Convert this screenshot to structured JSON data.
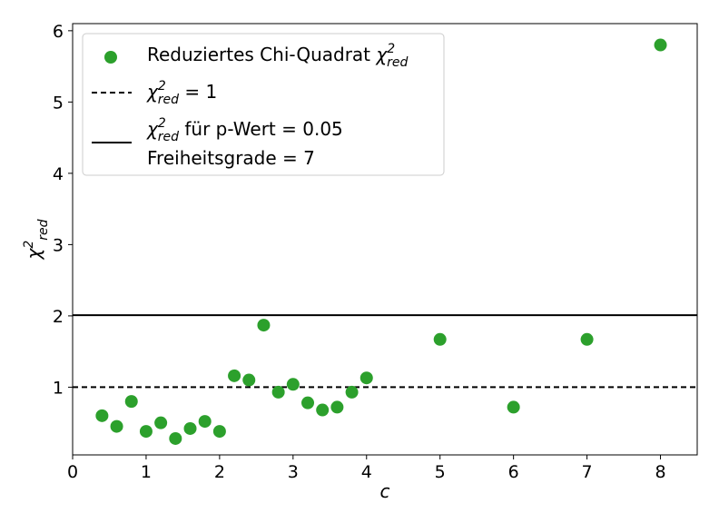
{
  "chart_data": {
    "type": "scatter",
    "xlabel": "c",
    "ylabel": {
      "symbol": "χ",
      "sup": "2",
      "sub": "red"
    },
    "xlim": [
      0,
      8.5
    ],
    "ylim": [
      0.05,
      6.1
    ],
    "xticks": [
      "0",
      "1",
      "2",
      "3",
      "4",
      "5",
      "6",
      "7",
      "8"
    ],
    "yticks": [
      "1",
      "2",
      "3",
      "4",
      "5",
      "6"
    ],
    "grid": false,
    "legend_position": "top-left",
    "series": [
      {
        "name": "Reduziertes Chi-Quadrat",
        "name_math": {
          "symbol": "χ",
          "sup": "2",
          "sub": "red"
        },
        "color": "#2ca02c",
        "x": [
          0.4,
          0.6,
          0.8,
          1.0,
          1.2,
          1.4,
          1.6,
          1.8,
          2.0,
          2.2,
          2.4,
          2.6,
          2.8,
          3.0,
          3.2,
          3.4,
          3.6,
          3.8,
          4.0,
          5.0,
          6.0,
          7.0,
          8.0
        ],
        "y": [
          0.6,
          0.45,
          0.8,
          0.38,
          0.5,
          0.28,
          0.42,
          0.52,
          0.38,
          1.16,
          1.1,
          1.87,
          0.93,
          1.04,
          0.78,
          0.68,
          0.72,
          0.93,
          1.13,
          1.67,
          0.72,
          1.67,
          5.8
        ]
      }
    ],
    "reference_lines": [
      {
        "y": 1,
        "style": "dashed",
        "color": "#000000",
        "label_math": {
          "symbol": "χ",
          "sup": "2",
          "sub": "red"
        },
        "label_rest": " = 1"
      },
      {
        "y": 2.01,
        "style": "solid",
        "color": "#000000",
        "label_math": {
          "symbol": "χ",
          "sup": "2",
          "sub": "red"
        },
        "label_rest": " für p-Wert = 0.05",
        "label_line2": "Freiheitsgrade = 7"
      }
    ]
  }
}
